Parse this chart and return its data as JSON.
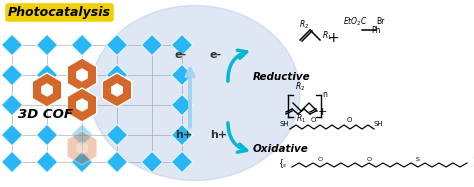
{
  "bg_color": "#ffffff",
  "ellipse_color": "#b8c8e8",
  "ellipse_alpha": 0.45,
  "arrow_cyan": "#00b8d4",
  "blue_sq": "#29b6f6",
  "orange_node": "#d4682a",
  "grid_color": "#999999",
  "photo_bg": "#f0d000",
  "photo_text": "Photocatalysis",
  "cof_text": "3D COF",
  "reductive_text": "Reductive",
  "oxidative_text": "Oxidative",
  "e_left": "e-",
  "h_left": "h+",
  "e_right": "e-",
  "h_right": "h+",
  "center_arrow_color": "#a0d4f0",
  "figw": 4.74,
  "figh": 1.87,
  "dpi": 100
}
